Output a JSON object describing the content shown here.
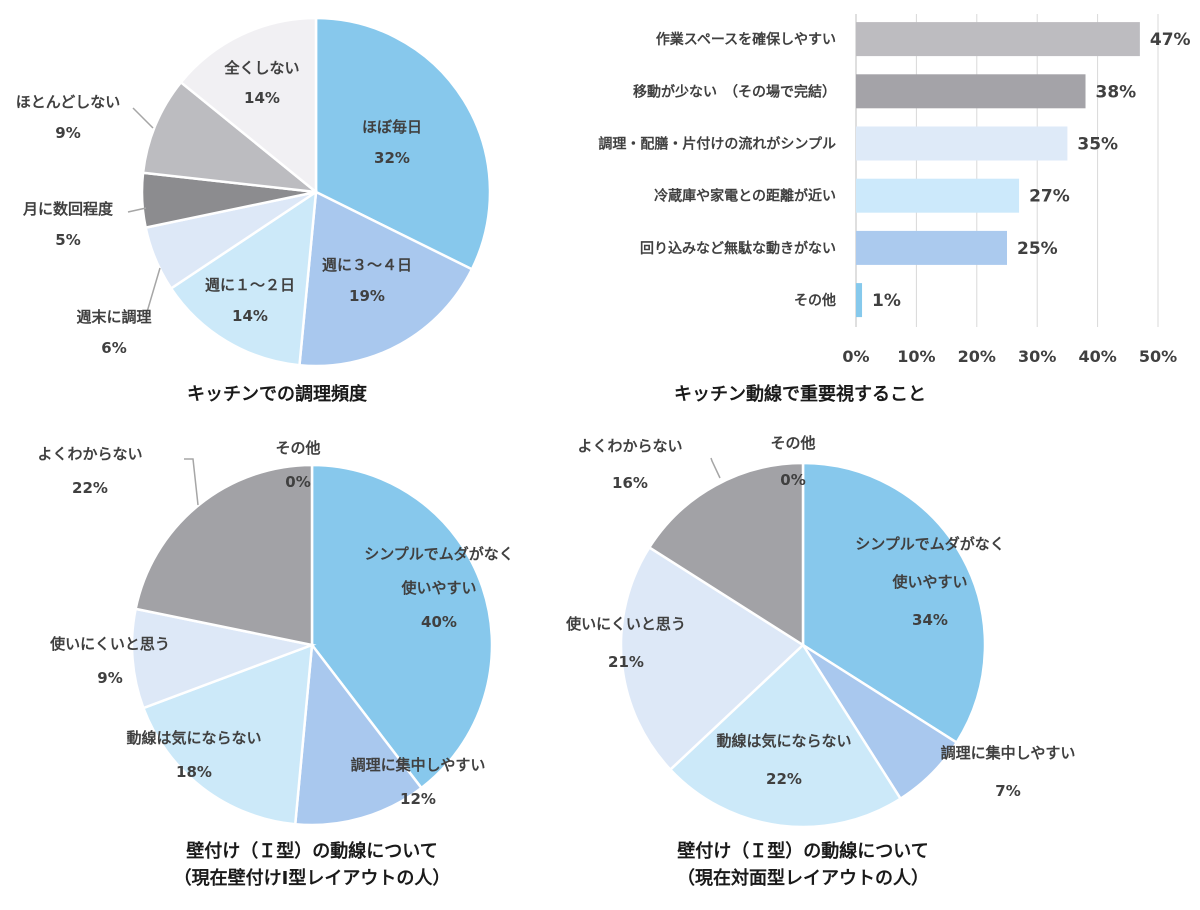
{
  "chart_data": [
    {
      "type": "pie",
      "title": "キッチンでの調理頻度",
      "slices": [
        {
          "label": "ほぼ毎日",
          "value": 32,
          "value_label": "32%",
          "color": "#87c8ec"
        },
        {
          "label": "週に３～４日",
          "value": 19,
          "value_label": "19%",
          "color": "#a9c8ee"
        },
        {
          "label": "週に１～２日",
          "value": 14,
          "value_label": "14%",
          "color": "#cce9f9"
        },
        {
          "label": "週末に調理",
          "value": 6,
          "value_label": "6%",
          "color": "#dde8f7"
        },
        {
          "label": "月に数回程度",
          "value": 5,
          "value_label": "5%",
          "color": "#8c8c8f"
        },
        {
          "label": "ほとんどしない",
          "value": 9,
          "value_label": "9%",
          "color": "#bcbcc0"
        },
        {
          "label": "全くしない",
          "value": 14,
          "value_label": "14%",
          "color": "#f1f0f3"
        }
      ]
    },
    {
      "type": "bar",
      "orientation": "horizontal",
      "title": "キッチン動線で重要視すること",
      "categories": [
        "作業スペースを確保しやすい",
        "移動が少ない　（その場で完結）",
        "調理・配膳・片付けの流れがシンプル",
        "冷蔵庫や家電との距離が近い",
        "回り込みなど無駄な動きがない",
        "その他"
      ],
      "values": [
        47,
        38,
        35,
        27,
        25,
        1
      ],
      "value_labels": [
        "47%",
        "38%",
        "35%",
        "27%",
        "25%",
        "1%"
      ],
      "colors": [
        "#bdbcc0",
        "#a4a3a8",
        "#deeaf8",
        "#cce9fb",
        "#abcaee",
        "#86c9ec"
      ],
      "xlim": [
        0,
        50
      ],
      "x_ticks": [
        "0%",
        "10%",
        "20%",
        "30%",
        "40%",
        "50%"
      ],
      "grid": true
    },
    {
      "type": "pie",
      "title": [
        "壁付け（Ｉ型）の動線について",
        "（現在壁付けI型レイアウトの人）"
      ],
      "slices": [
        {
          "label": [
            "シンプルでムダがなく",
            "使いやすい"
          ],
          "value": 40,
          "value_label": "40%",
          "color": "#87c8ec"
        },
        {
          "label": [
            "調理に集中しやすい"
          ],
          "value": 12,
          "value_label": "12%",
          "color": "#a9c8ee"
        },
        {
          "label": [
            "動線は気にならない"
          ],
          "value": 18,
          "value_label": "18%",
          "color": "#cce9f9"
        },
        {
          "label": [
            "使いにくいと思う"
          ],
          "value": 9,
          "value_label": "9%",
          "color": "#dde8f7"
        },
        {
          "label": [
            "よくわからない"
          ],
          "value": 22,
          "value_label": "22%",
          "color": "#a2a2a6"
        },
        {
          "label": [
            "その他"
          ],
          "value": 0,
          "value_label": "0%",
          "color": "#f1f0f3"
        }
      ]
    },
    {
      "type": "pie",
      "title": [
        "壁付け（Ｉ型）の動線について",
        "（現在対面型レイアウトの人）"
      ],
      "slices": [
        {
          "label": [
            "シンプルでムダがなく",
            "使いやすい"
          ],
          "value": 34,
          "value_label": "34%",
          "color": "#87c8ec"
        },
        {
          "label": [
            "調理に集中しやすい"
          ],
          "value": 7,
          "value_label": "7%",
          "color": "#a9c8ee"
        },
        {
          "label": [
            "動線は気にならない"
          ],
          "value": 22,
          "value_label": "22%",
          "color": "#cce9f9"
        },
        {
          "label": [
            "使いにくいと思う"
          ],
          "value": 21,
          "value_label": "21%",
          "color": "#dde8f7"
        },
        {
          "label": [
            "よくわからない"
          ],
          "value": 16,
          "value_label": "16%",
          "color": "#a2a2a6"
        },
        {
          "label": [
            "その他"
          ],
          "value": 0,
          "value_label": "0%",
          "color": "#f1f0f3"
        }
      ]
    }
  ]
}
